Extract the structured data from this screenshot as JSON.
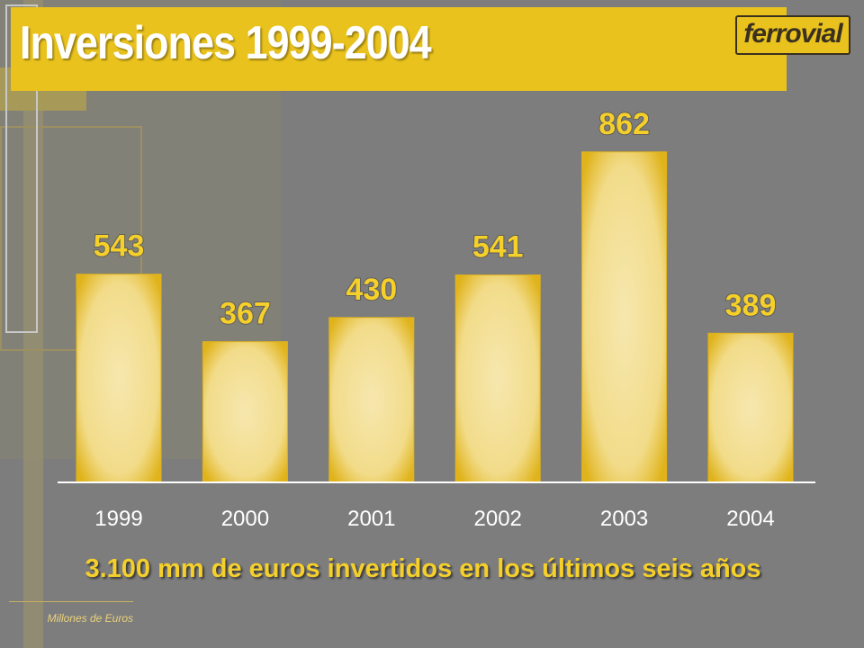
{
  "page": {
    "title": "Inversiones 1999-2004",
    "logo_text": "ferrovial",
    "subtitle": "3.100 mm de euros invertidos en los últimos seis años",
    "footnote": "Millones de Euros"
  },
  "colors": {
    "background": "#7d7d7d",
    "accent": "#e9c21d",
    "bar_light": "#f5e4a0",
    "bar_dark": "#e0b31b",
    "value_label": "#f5cf2a",
    "logo_text": "#3a3020"
  },
  "chart_data": {
    "type": "bar",
    "title": "",
    "xlabel": "",
    "ylabel": "",
    "categories": [
      "1999",
      "2000",
      "2001",
      "2002",
      "2003",
      "2004"
    ],
    "values": [
      543,
      367,
      430,
      541,
      862,
      389
    ],
    "value_labels": [
      "543",
      "367",
      "430",
      "541",
      "862",
      "389"
    ],
    "ylim": [
      0,
      1000
    ],
    "grid": false,
    "legend": "none"
  }
}
